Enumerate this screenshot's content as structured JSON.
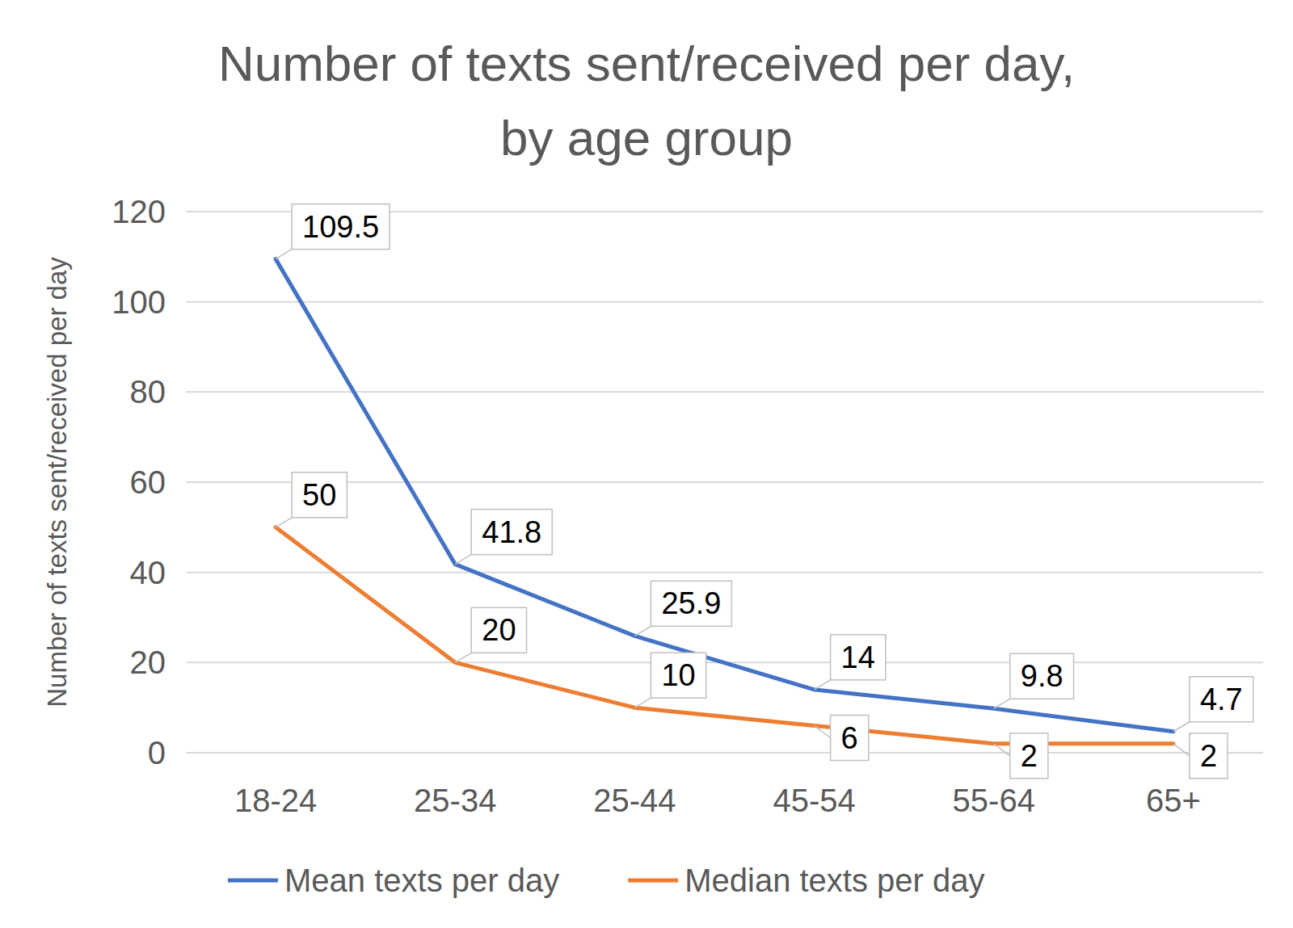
{
  "chart_data": {
    "type": "line",
    "title": "Number of texts sent/received per day, by age group",
    "y_label": "Number of texts sent/received per day",
    "categories": [
      "18-24",
      "25-34",
      "25-44",
      "45-54",
      "55-64",
      "65+"
    ],
    "series": [
      {
        "name": "Mean texts per day",
        "color": "#4472c4",
        "values": [
          109.5,
          41.8,
          25.9,
          14,
          9.8,
          4.7
        ]
      },
      {
        "name": "Median texts per day",
        "color": "#ed7d31",
        "values": [
          50,
          20,
          10,
          6,
          2,
          2
        ]
      }
    ],
    "ylim": [
      0,
      120
    ],
    "yticks": [
      0,
      20,
      40,
      60,
      80,
      100,
      120
    ],
    "grid": true,
    "data_labels": true,
    "legend": "bottom"
  }
}
